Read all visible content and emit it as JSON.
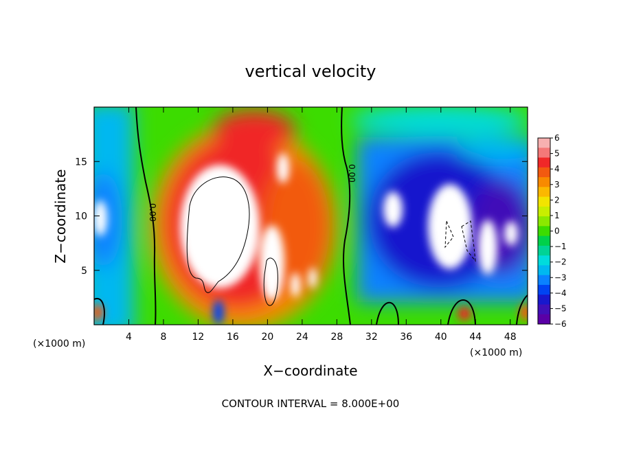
{
  "chart_data": {
    "type": "heatmap",
    "title": "vertical velocity",
    "xlabel": "X−coordinate",
    "ylabel": "Z−coordinate",
    "x_unit_label": "(×1000 m)",
    "footer": "CONTOUR INTERVAL = 8.000E+00",
    "xlim": [
      0,
      50
    ],
    "ylim": [
      0,
      20
    ],
    "x_ticks": [
      {
        "value": 4,
        "label": "4"
      },
      {
        "value": 8,
        "label": "8"
      },
      {
        "value": 12,
        "label": "12"
      },
      {
        "value": 16,
        "label": "16"
      },
      {
        "value": 20,
        "label": "20"
      },
      {
        "value": 24,
        "label": "24"
      },
      {
        "value": 28,
        "label": "28"
      },
      {
        "value": 32,
        "label": "32"
      },
      {
        "value": 36,
        "label": "36"
      },
      {
        "value": 40,
        "label": "40"
      },
      {
        "value": 44,
        "label": "44"
      },
      {
        "value": 48,
        "label": "48"
      }
    ],
    "y_ticks": [
      {
        "value": 5,
        "label": "5"
      },
      {
        "value": 10,
        "label": "10"
      },
      {
        "value": 15,
        "label": "15"
      }
    ],
    "colorbar": {
      "range": [
        -6,
        6
      ],
      "labels": [
        "6",
        "5",
        "4",
        "3",
        "2",
        "1",
        "0",
        "−1",
        "−2",
        "−3",
        "−4",
        "−5",
        "−6"
      ],
      "colors": [
        "#f7b0b0",
        "#f47878",
        "#f02828",
        "#f25a10",
        "#f88a00",
        "#fbb800",
        "#f2e400",
        "#c8ee00",
        "#8be800",
        "#3cdc00",
        "#00d14a",
        "#00d395",
        "#00dcdc",
        "#00b8f0",
        "#0a82ff",
        "#0044f2",
        "#1818cd",
        "#4010b8",
        "#5a00a6"
      ]
    },
    "contour_labels": [
      "0.00",
      "0.00"
    ],
    "field_regions": [
      {
        "x": 16,
        "z": 10,
        "value": 8
      },
      {
        "x": 20.5,
        "z": 4,
        "value": 7
      },
      {
        "x": 38,
        "z": 7,
        "value": -7
      },
      {
        "x": 43,
        "z": 10,
        "value": -7
      },
      {
        "x": 46,
        "z": 7,
        "value": -6
      },
      {
        "x": 1,
        "z": 10,
        "value": -5
      },
      {
        "x": 6,
        "z": 10,
        "value": 0
      },
      {
        "x": 29,
        "z": 12,
        "value": 0
      }
    ]
  }
}
